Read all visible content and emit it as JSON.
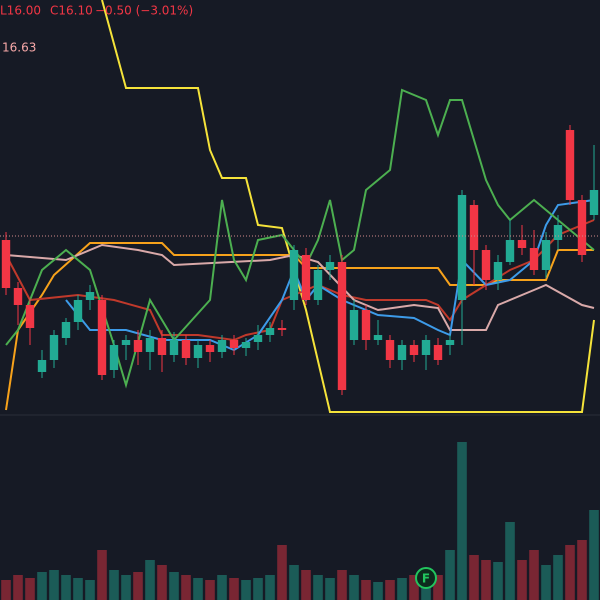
{
  "chart_data": {
    "type": "candlestick",
    "x": [
      0,
      1,
      2,
      3,
      4,
      5,
      6,
      7,
      8,
      9,
      10,
      11,
      12,
      13,
      14,
      15,
      16,
      17,
      18,
      19,
      20,
      21,
      22,
      23,
      24,
      25,
      26,
      27,
      28,
      29,
      30,
      31,
      32,
      33,
      34,
      35,
      36,
      37,
      38,
      39,
      40,
      41,
      42,
      43,
      44,
      45,
      46,
      47,
      48,
      49
    ],
    "open": [
      16.06,
      15.58,
      15.41,
      14.74,
      14.86,
      15.08,
      15.24,
      15.46,
      15.46,
      14.76,
      15.01,
      15.06,
      14.94,
      15.08,
      14.91,
      15.06,
      14.88,
      15.01,
      14.94,
      15.06,
      14.98,
      15.04,
      15.11,
      15.18,
      15.46,
      15.91,
      15.46,
      15.76,
      15.84,
      15.06,
      15.36,
      15.06,
      15.06,
      14.86,
      15.01,
      14.91,
      15.01,
      15.01,
      15.46,
      16.41,
      15.96,
      15.66,
      15.84,
      16.06,
      15.98,
      15.76,
      16.06,
      17.16,
      16.46,
      16.31
    ],
    "high": [
      16.14,
      15.64,
      15.48,
      14.96,
      15.16,
      15.28,
      15.51,
      15.61,
      15.51,
      15.06,
      15.11,
      15.16,
      15.16,
      15.16,
      15.14,
      15.11,
      15.06,
      15.06,
      15.11,
      15.11,
      15.08,
      15.21,
      15.24,
      15.26,
      16.01,
      15.98,
      15.81,
      15.91,
      15.91,
      15.46,
      15.41,
      15.26,
      15.11,
      15.06,
      15.06,
      15.11,
      15.08,
      15.11,
      16.56,
      16.46,
      16.01,
      15.91,
      16.26,
      16.21,
      16.16,
      16.14,
      16.31,
      17.21,
      16.51,
      17.01
    ],
    "low": [
      15.51,
      15.21,
      15.01,
      14.68,
      14.78,
      15.01,
      15.16,
      15.36,
      14.66,
      14.68,
      14.86,
      14.81,
      14.76,
      14.74,
      14.84,
      14.81,
      14.78,
      14.84,
      14.88,
      14.91,
      14.9,
      14.96,
      15.04,
      15.1,
      15.36,
      15.41,
      15.41,
      15.66,
      14.51,
      15.01,
      14.96,
      15.01,
      14.78,
      14.76,
      14.84,
      14.76,
      14.81,
      14.91,
      15.01,
      15.61,
      15.56,
      15.56,
      15.81,
      15.91,
      15.71,
      15.68,
      15.96,
      16.41,
      15.84,
      16.26
    ],
    "close": [
      15.58,
      15.41,
      15.18,
      14.86,
      15.11,
      15.24,
      15.46,
      15.54,
      14.71,
      15.01,
      15.06,
      14.94,
      15.08,
      14.91,
      15.06,
      14.88,
      15.01,
      14.94,
      15.06,
      14.98,
      15.04,
      15.11,
      15.18,
      15.16,
      15.96,
      15.46,
      15.76,
      15.84,
      14.56,
      15.36,
      15.06,
      15.11,
      14.86,
      15.01,
      14.91,
      15.06,
      14.86,
      15.06,
      16.51,
      15.96,
      15.66,
      15.84,
      16.06,
      15.98,
      15.76,
      16.06,
      16.21,
      16.46,
      15.91,
      16.56
    ],
    "up_color": "#22ab94",
    "down_color": "#f23645",
    "xlim": [
      -0.5,
      49.5
    ],
    "ylim": [
      12.46,
      18.46
    ],
    "price_line": 16.1,
    "series": [
      {
        "color": "#f5e33a",
        "x": [
          8,
          10,
          16,
          17,
          18,
          20,
          21,
          23,
          25,
          27,
          48,
          49
        ],
        "values": [
          18.46,
          17.58,
          17.58,
          16.96,
          16.68,
          16.68,
          16.21,
          16.18,
          15.36,
          14.34,
          14.34,
          15.26
        ]
      },
      {
        "color": "#f7a21b",
        "x": [
          0,
          1,
          3,
          4,
          7,
          13,
          14,
          24,
          25,
          36,
          37,
          40,
          41,
          45,
          46,
          49
        ],
        "values": [
          14.36,
          15.16,
          15.51,
          15.71,
          16.03,
          16.03,
          15.91,
          15.91,
          15.78,
          15.78,
          15.61,
          15.61,
          15.66,
          15.66,
          15.96,
          15.96
        ]
      },
      {
        "color": "#c0392b",
        "x": [
          0,
          2,
          6,
          9,
          12,
          13,
          16,
          19,
          20,
          22,
          23,
          24,
          26,
          28,
          30,
          35,
          36,
          37,
          38,
          40,
          42,
          44,
          46,
          49
        ],
        "values": [
          15.91,
          15.46,
          15.51,
          15.46,
          15.36,
          15.11,
          15.11,
          15.06,
          15.11,
          15.16,
          15.46,
          15.51,
          15.61,
          15.51,
          15.46,
          15.46,
          15.41,
          15.26,
          15.46,
          15.61,
          15.76,
          15.86,
          16.11,
          16.26
        ]
      },
      {
        "color": "#d9a9a9",
        "x": [
          0,
          5,
          8,
          11,
          13,
          14,
          22,
          24,
          26,
          29,
          31,
          34,
          36,
          37,
          40,
          41,
          44,
          45,
          48,
          49
        ],
        "values": [
          15.91,
          15.86,
          16.01,
          15.96,
          15.91,
          15.81,
          15.86,
          15.91,
          15.84,
          15.46,
          15.36,
          15.41,
          15.38,
          15.16,
          15.16,
          15.41,
          15.56,
          15.61,
          15.41,
          15.38
        ]
      },
      {
        "color": "#3d9be9",
        "x": [
          5,
          7,
          10,
          13,
          17,
          19,
          21,
          23,
          24,
          25,
          26,
          28,
          31,
          34,
          36,
          37,
          38,
          40,
          42,
          44,
          45,
          46,
          49
        ],
        "values": [
          15.46,
          15.16,
          15.16,
          15.06,
          15.06,
          14.96,
          15.11,
          15.46,
          15.76,
          15.46,
          15.61,
          15.46,
          15.31,
          15.28,
          15.16,
          15.11,
          15.86,
          15.61,
          15.66,
          15.86,
          16.21,
          16.41,
          16.46
        ]
      },
      {
        "color": "#4caf50",
        "x": [
          0,
          1,
          3,
          5,
          7,
          9,
          10,
          12,
          14,
          17,
          18,
          19,
          20,
          21,
          23,
          25,
          26,
          27,
          28,
          29,
          30,
          32,
          33,
          35,
          36,
          37,
          38,
          40,
          41,
          42,
          44,
          46,
          49
        ],
        "values": [
          15.01,
          15.16,
          15.76,
          15.96,
          15.76,
          15.01,
          14.61,
          15.46,
          15.06,
          15.46,
          16.46,
          15.86,
          15.66,
          16.06,
          16.11,
          15.81,
          16.06,
          16.46,
          15.86,
          15.96,
          16.56,
          16.76,
          17.56,
          17.46,
          17.11,
          17.46,
          17.46,
          16.66,
          16.41,
          16.26,
          16.46,
          16.26,
          15.96
        ]
      }
    ],
    "volume": {
      "ylim": [
        0,
        200
      ],
      "values": [
        20,
        25,
        22,
        28,
        30,
        25,
        22,
        20,
        50,
        30,
        25,
        28,
        40,
        35,
        28,
        25,
        22,
        20,
        25,
        22,
        20,
        22,
        25,
        55,
        35,
        30,
        25,
        22,
        30,
        25,
        20,
        18,
        20,
        22,
        25,
        20,
        25,
        50,
        158,
        45,
        40,
        38,
        78,
        40,
        50,
        35,
        45,
        55,
        60,
        90
      ]
    },
    "legend": {
      "low": "L16.00",
      "close": "C16.10",
      "change": "−0.50 (−3.01%)",
      "indicator": "16.63"
    },
    "marker": {
      "x": 35,
      "label": "F"
    }
  }
}
